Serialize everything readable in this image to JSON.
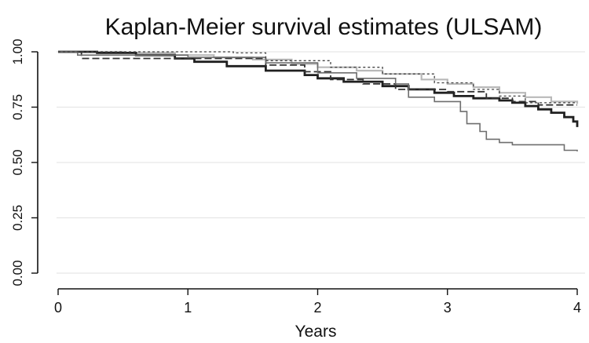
{
  "chart_data": {
    "type": "line",
    "title": "Kaplan-Meier survival estimates (ULSAM)",
    "xlabel": "Years",
    "ylabel": "",
    "xlim": [
      0,
      4
    ],
    "ylim": [
      0,
      1
    ],
    "x_ticks": [
      0,
      1,
      2,
      3,
      4
    ],
    "y_ticks": [
      0.0,
      0.25,
      0.5,
      0.75,
      1.0
    ],
    "x_tick_labels": [
      "0",
      "1",
      "2",
      "3",
      "4"
    ],
    "y_tick_labels": [
      "0.00",
      "0.25",
      "0.50",
      "0.75",
      "1.00"
    ],
    "grid": true,
    "step": true,
    "series": [
      {
        "color": "#b9b9b9",
        "width": 2.2,
        "dash": "",
        "x": [
          0,
          0.5,
          0.9,
          1.2,
          1.5,
          1.8,
          2.0,
          2.3,
          2.5,
          2.8,
          3.0,
          3.2,
          3.4,
          3.6,
          3.8,
          4.0
        ],
        "y": [
          1.0,
          0.995,
          0.985,
          0.975,
          0.965,
          0.945,
          0.93,
          0.915,
          0.9,
          0.875,
          0.855,
          0.84,
          0.815,
          0.795,
          0.775,
          0.765
        ]
      },
      {
        "color": "#202020",
        "width": 2.8,
        "dash": "",
        "x": [
          0,
          0.3,
          0.6,
          0.9,
          1.05,
          1.3,
          1.6,
          1.9,
          2.0,
          2.2,
          2.5,
          2.7,
          2.9,
          3.05,
          3.2,
          3.4,
          3.5,
          3.6,
          3.7,
          3.8,
          3.9,
          3.97,
          4.0
        ],
        "y": [
          1.0,
          0.995,
          0.985,
          0.97,
          0.955,
          0.935,
          0.915,
          0.895,
          0.88,
          0.865,
          0.845,
          0.83,
          0.815,
          0.8,
          0.79,
          0.78,
          0.77,
          0.755,
          0.74,
          0.725,
          0.705,
          0.685,
          0.66
        ]
      },
      {
        "color": "#333333",
        "width": 1.8,
        "dash": "9 4",
        "x": [
          0,
          0.18,
          0.9,
          1.6,
          1.9,
          2.1,
          2.35,
          2.6,
          3.0,
          3.3,
          3.5,
          3.7,
          4.0
        ],
        "y": [
          1.0,
          0.97,
          0.97,
          0.94,
          0.91,
          0.875,
          0.855,
          0.83,
          0.82,
          0.79,
          0.775,
          0.76,
          0.76
        ]
      },
      {
        "color": "#6e6e6e",
        "width": 1.6,
        "dash": "",
        "x": [
          0,
          0.15,
          1.0,
          1.6,
          2.0,
          2.3,
          2.6,
          2.7,
          2.9,
          3.1,
          3.15,
          3.25,
          3.3,
          3.4,
          3.5,
          3.9,
          4.0
        ],
        "y": [
          1.0,
          0.985,
          0.975,
          0.95,
          0.905,
          0.88,
          0.855,
          0.795,
          0.775,
          0.73,
          0.675,
          0.64,
          0.605,
          0.59,
          0.58,
          0.555,
          0.55
        ]
      },
      {
        "color": "#444444",
        "width": 1.3,
        "dash": "3 3",
        "x": [
          0,
          1.35,
          1.6,
          2.1,
          2.5,
          2.9,
          3.2,
          3.4,
          3.6,
          4.0
        ],
        "y": [
          1.0,
          0.995,
          0.96,
          0.93,
          0.9,
          0.86,
          0.83,
          0.8,
          0.77,
          0.77
        ]
      }
    ]
  }
}
